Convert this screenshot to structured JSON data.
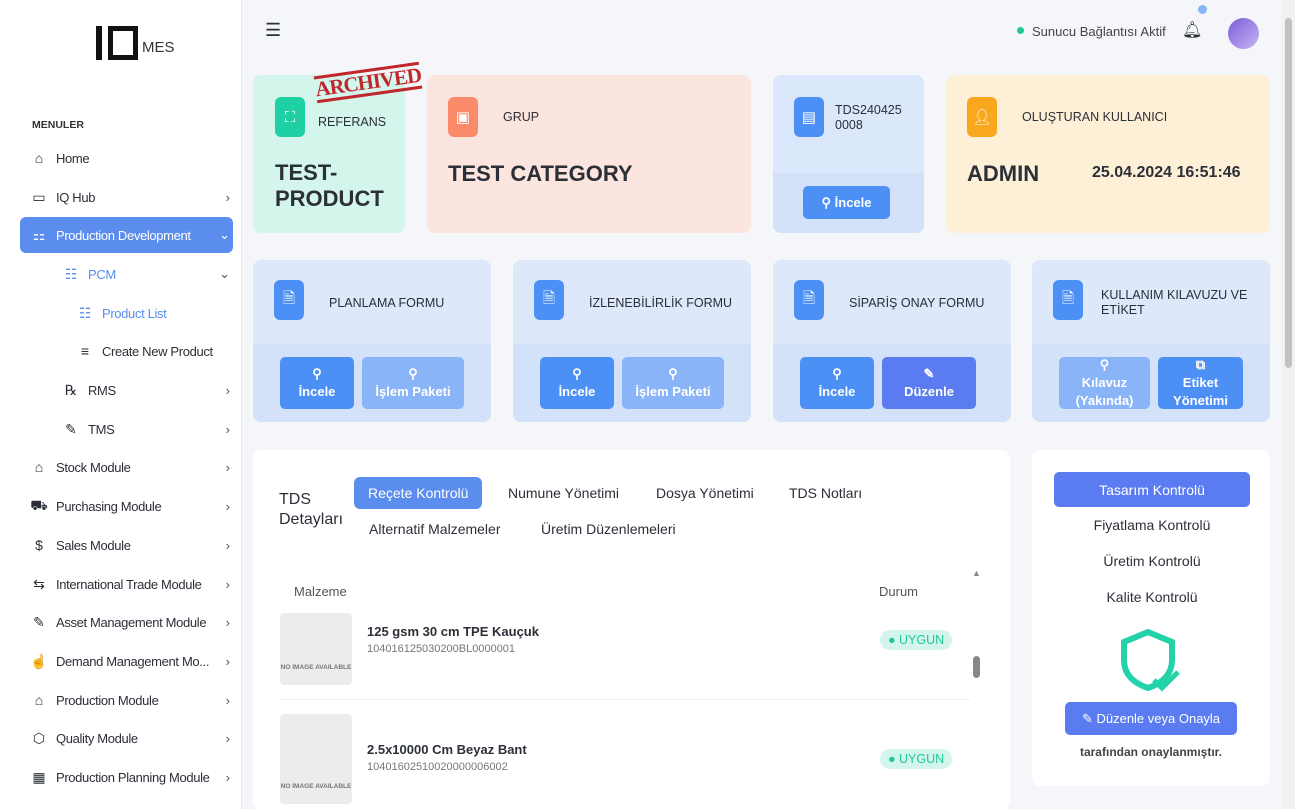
{
  "brand": {
    "logo": "IQ",
    "suffix": "MES"
  },
  "sidebar": {
    "heading": "MENULER",
    "items": [
      {
        "label": "Home",
        "icon": "home-icon"
      },
      {
        "label": "IQ Hub",
        "icon": "monitor-icon"
      },
      {
        "label": "Production Development",
        "icon": "shapes-icon"
      },
      {
        "label": "PCM",
        "icon": "list-icon"
      },
      {
        "label": "Product List",
        "icon": "list-icon"
      },
      {
        "label": "Create New Product",
        "icon": "playlist-add-icon"
      },
      {
        "label": "RMS",
        "icon": "rx-icon"
      },
      {
        "label": "TMS",
        "icon": "edit-icon"
      },
      {
        "label": "Stock Module",
        "icon": "warehouse-icon"
      },
      {
        "label": "Purchasing Module",
        "icon": "cart-icon"
      },
      {
        "label": "Sales Module",
        "icon": "coins-icon"
      },
      {
        "label": "International Trade Module",
        "icon": "transfer-icon"
      },
      {
        "label": "Asset Management Module",
        "icon": "edit-icon"
      },
      {
        "label": "Demand Management Mo...",
        "icon": "hand-icon"
      },
      {
        "label": "Production Module",
        "icon": "factory-icon"
      },
      {
        "label": "Quality Module",
        "icon": "badge-icon"
      },
      {
        "label": "Production Planning Module",
        "icon": "calendar-icon"
      }
    ]
  },
  "topbar": {
    "status": "Sunucu Bağlantısı Aktif",
    "status_color": "#1fc79a"
  },
  "cards": {
    "reference": {
      "label": "REFERANS",
      "value": "TEST-PRODUCT",
      "stamp": "ARCHIVED"
    },
    "group": {
      "label": "GRUP",
      "value": "TEST CATEGORY"
    },
    "tds": {
      "code": "TDS2404250008",
      "button": "İncele"
    },
    "creator": {
      "label": "OLUŞTURAN KULLANICI",
      "value": "ADMIN",
      "date": "25.04.2024 16:51:46"
    }
  },
  "forms": [
    {
      "title": "PLANLAMA FORMU",
      "b1": "İncele",
      "b2": "İşlem Paketi"
    },
    {
      "title": "İZLENEBİLİRLİK FORMU",
      "b1": "İncele",
      "b2": "İşlem Paketi"
    },
    {
      "title": "SİPARİŞ ONAY FORMU",
      "b1": "İncele",
      "b2": "Düzenle"
    },
    {
      "title": "KULLANIM KILAVUZU VE ETİKET",
      "b1": "Kılavuz (Yakında)",
      "b2": "Etiket Yönetimi"
    }
  ],
  "details": {
    "title": "TDS Detayları",
    "tabs": [
      "Reçete Kontrolü",
      "Numune Yönetimi",
      "Dosya Yönetimi",
      "TDS Notları",
      "Alternatif Malzemeler",
      "Üretim Düzenlemeleri"
    ],
    "columns": [
      "Malzeme",
      "Durum"
    ],
    "rows": [
      {
        "name": "125 gsm 30 cm TPE Kauçuk",
        "code": "104016125030200BL0000001",
        "status": "UYGUN",
        "img": "NO IMAGE AVAILABLE"
      },
      {
        "name": "2.5x10000 Cm Beyaz Bant",
        "code": "10401602510020000006002",
        "status": "UYGUN",
        "img": "NO IMAGE AVAILABLE"
      }
    ]
  },
  "controls": {
    "items": [
      "Tasarım Kontrolü",
      "Fiyatlama Kontrolü",
      "Üretim Kontrolü",
      "Kalite Kontrolü"
    ],
    "action": "Düzenle veya Onayla",
    "note": "tarafından onaylanmıştır."
  }
}
